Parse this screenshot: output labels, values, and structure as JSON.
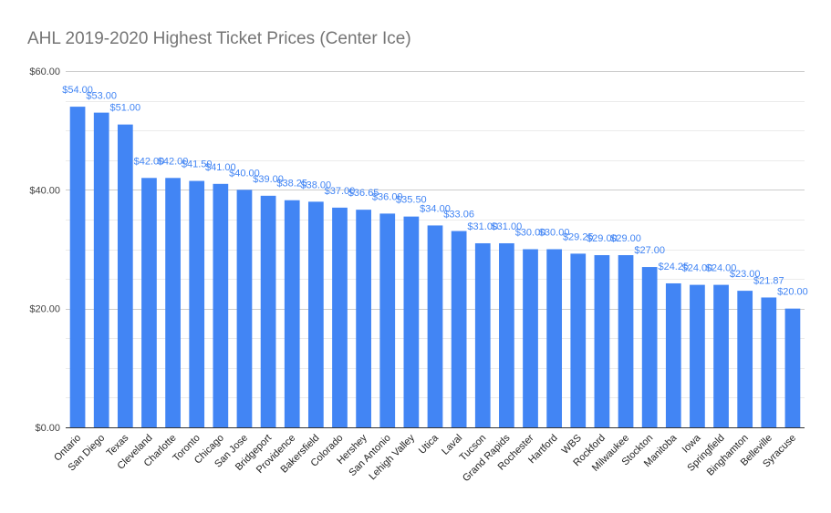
{
  "chart_data": {
    "type": "bar",
    "title": "AHL 2019-2020 Highest Ticket Prices (Center Ice)",
    "xlabel": "",
    "ylabel": "",
    "ylim": [
      0,
      60
    ],
    "yticks": [
      "$0.00",
      "$20.00",
      "$40.00",
      "$60.00"
    ],
    "grid": true,
    "legend": "none",
    "bar_color": "#4285f4",
    "label_color": "#4285f4",
    "categories": [
      "Ontario",
      "San Diego",
      "Texas",
      "Cleveland",
      "Charlotte",
      "Toronto",
      "Chicago",
      "San Jose",
      "Bridgeport",
      "Providence",
      "Bakersfield",
      "Colorado",
      "Hershey",
      "San Antonio",
      "Lehigh Valley",
      "Utica",
      "Laval",
      "Tucson",
      "Grand Rapids",
      "Rochester",
      "Hartford",
      "WBS",
      "Rockford",
      "Milwaukee",
      "Stockton",
      "Manitoba",
      "Iowa",
      "Springfield",
      "Binghamton",
      "Belleville",
      "Syracuse"
    ],
    "values": [
      54.0,
      53.0,
      51.0,
      42.0,
      42.0,
      41.5,
      41.0,
      40.0,
      39.0,
      38.25,
      38.0,
      37.0,
      36.65,
      36.0,
      35.5,
      34.0,
      33.06,
      31.0,
      31.0,
      30.0,
      30.0,
      29.25,
      29.0,
      29.0,
      27.0,
      24.25,
      24.0,
      24.0,
      23.0,
      21.87,
      20.0
    ],
    "data_labels": [
      "$54.00",
      "$53.00",
      "$51.00",
      "$42.00",
      "$42.00",
      "$41.50",
      "$41.00",
      "$40.00",
      "$39.00",
      "$38.25",
      "$38.00",
      "$37.00",
      "$36.65",
      "$36.00",
      "$35.50",
      "$34.00",
      "$33.06",
      "$31.00",
      "$31.00",
      "$30.00",
      "$30.00",
      "$29.25",
      "$29.00",
      "$29.00",
      "$27.00",
      "$24.25",
      "$24.00",
      "$24.00",
      "$23.00",
      "$21.87",
      "$20.00"
    ]
  }
}
